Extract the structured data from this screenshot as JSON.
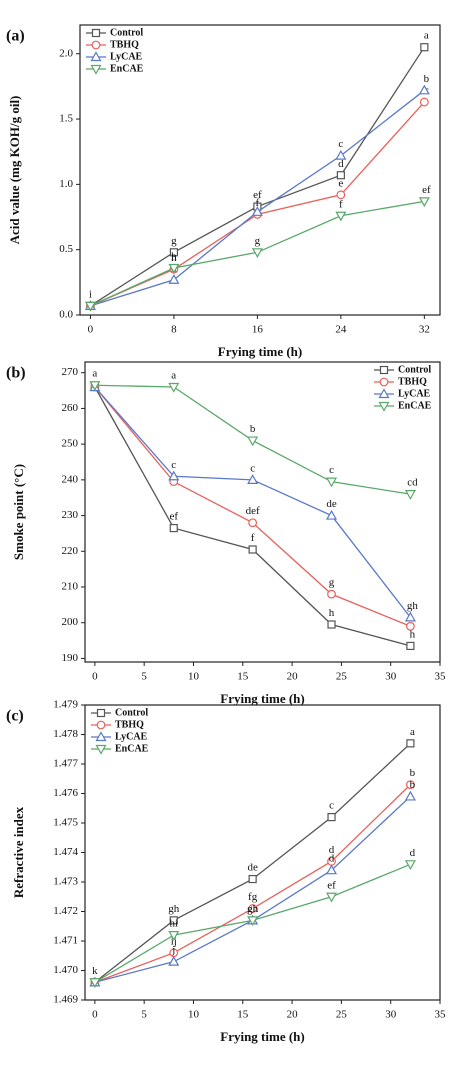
{
  "chart_data": [
    {
      "type": "line",
      "panel_label": "(a)",
      "x_label": "Frying time (h)",
      "y_label": "Acid value (mg KOH/g oil)",
      "x": [
        0,
        8,
        16,
        24,
        32
      ],
      "xlim": [
        -1,
        33.5
      ],
      "xticks": [
        0,
        8,
        16,
        24,
        32
      ],
      "ylim": [
        0,
        2.22
      ],
      "yticks": [
        {
          "value": 0,
          "label": "0.0"
        },
        0.5,
        {
          "value": 1,
          "label": "1.0"
        },
        1.5,
        {
          "value": 2,
          "label": "2.0"
        }
      ],
      "legend": "upper left",
      "series": [
        {
          "name": "Control",
          "color": "#555555",
          "marker": "square",
          "values": [
            0.07,
            0.48,
            0.83,
            1.07,
            2.05
          ],
          "letters": [
            "i",
            "g",
            "ef",
            "d",
            "a"
          ]
        },
        {
          "name": "TBHQ",
          "color": "#e8605a",
          "marker": "circle",
          "values": [
            0.07,
            0.35,
            0.77,
            0.92,
            1.63
          ],
          "letters": [
            null,
            "h",
            "f",
            "e",
            "c"
          ]
        },
        {
          "name": "LyCAE",
          "color": "#5a78c8",
          "marker": "triangle-up",
          "values": [
            0.07,
            0.27,
            0.79,
            1.22,
            1.72
          ],
          "letters": [
            null,
            "h",
            null,
            "c",
            "b"
          ]
        },
        {
          "name": "EnCAE",
          "color": "#5aa86a",
          "marker": "triangle-down",
          "values": [
            0.07,
            0.36,
            0.48,
            0.76,
            0.87
          ],
          "letters": [
            null,
            "h",
            "g",
            "f",
            "ef"
          ]
        }
      ]
    },
    {
      "type": "line",
      "panel_label": "(b)",
      "x_label": "Frying time (h)",
      "y_label": "Smoke point (°C)",
      "x": [
        0,
        8,
        16,
        24,
        32
      ],
      "xlim": [
        -1,
        35
      ],
      "xticks": [
        0,
        5,
        10,
        15,
        20,
        25,
        30,
        35
      ],
      "ylim": [
        189,
        273
      ],
      "yticks": [
        190,
        200,
        210,
        220,
        230,
        240,
        250,
        260,
        270
      ],
      "legend": "upper right",
      "series": [
        {
          "name": "Control",
          "color": "#555555",
          "marker": "square",
          "values": [
            266,
            226.5,
            220.5,
            199.5,
            193.5
          ],
          "letters": [
            null,
            "ef",
            "f",
            "h",
            "h"
          ]
        },
        {
          "name": "TBHQ",
          "color": "#e8605a",
          "marker": "circle",
          "values": [
            266,
            239.5,
            228,
            208,
            199
          ],
          "letters": [
            null,
            null,
            "def",
            "g",
            null
          ]
        },
        {
          "name": "LyCAE",
          "color": "#5a78c8",
          "marker": "triangle-up",
          "values": [
            266,
            241,
            240,
            230,
            201.5
          ],
          "letters": [
            null,
            "c",
            "c",
            "de",
            "gh"
          ]
        },
        {
          "name": "EnCAE",
          "color": "#5aa86a",
          "marker": "triangle-down",
          "values": [
            266.5,
            266,
            251,
            239.5,
            236
          ],
          "letters": [
            "a",
            "a",
            "b",
            "c",
            "cd"
          ]
        }
      ]
    },
    {
      "type": "line",
      "panel_label": "(c)",
      "x_label": "Frying time (h)",
      "y_label": "Refractive index",
      "x": [
        0,
        8,
        16,
        24,
        32
      ],
      "xlim": [
        -1,
        35
      ],
      "xticks": [
        0,
        5,
        10,
        15,
        20,
        25,
        30,
        35
      ],
      "ylim": [
        1.469,
        1.479
      ],
      "yticks": [
        {
          "value": 1.469,
          "label": "1.469"
        },
        {
          "value": 1.47,
          "label": "1.470"
        },
        {
          "value": 1.471,
          "label": "1.471"
        },
        {
          "value": 1.472,
          "label": "1.472"
        },
        {
          "value": 1.473,
          "label": "1.473"
        },
        {
          "value": 1.474,
          "label": "1.474"
        },
        {
          "value": 1.475,
          "label": "1.475"
        },
        {
          "value": 1.476,
          "label": "1.476"
        },
        {
          "value": 1.477,
          "label": "1.477"
        },
        {
          "value": 1.478,
          "label": "1.478"
        },
        {
          "value": 1.479,
          "label": "1.479"
        }
      ],
      "legend": "upper left",
      "series": [
        {
          "name": "Control",
          "color": "#555555",
          "marker": "square",
          "values": [
            1.4696,
            1.4717,
            1.4731,
            1.4752,
            1.4777
          ],
          "letters": [
            "k",
            "gh",
            "de",
            "c",
            "a"
          ]
        },
        {
          "name": "TBHQ",
          "color": "#e8605a",
          "marker": "circle",
          "values": [
            1.4696,
            1.4706,
            1.4721,
            1.4737,
            1.4763
          ],
          "letters": [
            null,
            "ij",
            "fg",
            "d",
            "b"
          ]
        },
        {
          "name": "LyCAE",
          "color": "#5a78c8",
          "marker": "triangle-up",
          "values": [
            1.4696,
            1.4703,
            1.4717,
            1.4734,
            1.4759
          ],
          "letters": [
            null,
            "j",
            "gh",
            "d",
            "b"
          ]
        },
        {
          "name": "EnCAE",
          "color": "#5aa86a",
          "marker": "triangle-down",
          "values": [
            1.4696,
            1.4712,
            1.4717,
            1.4725,
            1.4736
          ],
          "letters": [
            null,
            "hi",
            "gh",
            "ef",
            "d"
          ]
        }
      ]
    }
  ]
}
